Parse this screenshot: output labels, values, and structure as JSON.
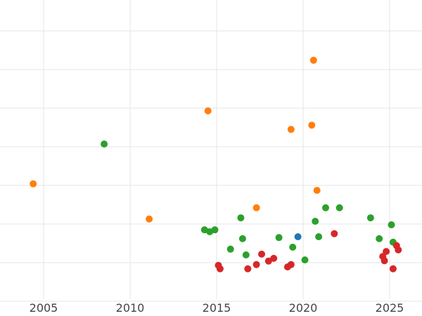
{
  "chart_data": {
    "type": "scatter",
    "title": "",
    "xlabel": "",
    "ylabel": "",
    "grid": true,
    "legend": false,
    "x_ticks": [
      2005,
      2010,
      2015,
      2020,
      2025
    ],
    "xlim": [
      2002.5,
      2026.9
    ],
    "ylim": [
      0,
      7.8
    ],
    "y_gridline_values": [
      0,
      1,
      2,
      3,
      4,
      5,
      6,
      7
    ],
    "series": [
      {
        "name": "orange",
        "color": "#ff7f0e",
        "points": [
          [
            2004.4,
            3.04
          ],
          [
            2011.1,
            2.13
          ],
          [
            2014.5,
            4.93
          ],
          [
            2017.3,
            2.42
          ],
          [
            2019.3,
            4.45
          ],
          [
            2020.5,
            4.56
          ],
          [
            2020.6,
            6.24
          ],
          [
            2020.8,
            2.87
          ]
        ]
      },
      {
        "name": "green",
        "color": "#2ca02c",
        "points": [
          [
            2008.5,
            4.07
          ],
          [
            2014.3,
            1.85
          ],
          [
            2014.6,
            1.8
          ],
          [
            2014.9,
            1.85
          ],
          [
            2015.8,
            1.35
          ],
          [
            2016.4,
            2.16
          ],
          [
            2016.5,
            1.62
          ],
          [
            2016.7,
            1.2
          ],
          [
            2018.6,
            1.65
          ],
          [
            2019.4,
            1.4
          ],
          [
            2020.1,
            1.07
          ],
          [
            2020.7,
            2.07
          ],
          [
            2020.9,
            1.67
          ],
          [
            2021.3,
            2.42
          ],
          [
            2022.1,
            2.42
          ],
          [
            2023.9,
            2.16
          ],
          [
            2024.4,
            1.62
          ],
          [
            2025.1,
            1.98
          ],
          [
            2025.2,
            1.53
          ]
        ]
      },
      {
        "name": "red",
        "color": "#d62728",
        "points": [
          [
            2015.1,
            0.93
          ],
          [
            2015.2,
            0.84
          ],
          [
            2016.8,
            0.84
          ],
          [
            2017.3,
            0.95
          ],
          [
            2017.6,
            1.22
          ],
          [
            2018.0,
            1.04
          ],
          [
            2018.3,
            1.11
          ],
          [
            2019.1,
            0.89
          ],
          [
            2019.3,
            0.95
          ],
          [
            2021.8,
            1.75
          ],
          [
            2024.6,
            1.16
          ],
          [
            2024.7,
            1.05
          ],
          [
            2024.8,
            1.29
          ],
          [
            2025.2,
            0.84
          ],
          [
            2025.4,
            1.44
          ],
          [
            2025.5,
            1.33
          ]
        ]
      },
      {
        "name": "blue",
        "color": "#1f77b4",
        "points": [
          [
            2019.7,
            1.67
          ]
        ]
      }
    ]
  },
  "style": {
    "background": "#ffffff",
    "grid_color": "#e4e4e4",
    "tick_label_color": "#444444",
    "marker_radius": 5
  }
}
